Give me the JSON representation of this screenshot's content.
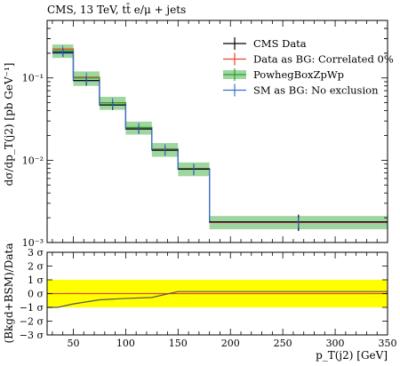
{
  "chart_data": [
    {
      "type": "line",
      "title": "CMS, 13 TeV, tt̄ e/μ + jets",
      "ylabel": "dσ/dp_T(j2) [pb GeV⁻¹]",
      "xlabel": "",
      "yscale": "log",
      "xlim": [
        25,
        350
      ],
      "ylim": [
        0.001,
        0.5
      ],
      "y_ticks": [
        {
          "value": 0.001,
          "label": "10⁻³"
        },
        {
          "value": 0.01,
          "label": "10⁻²"
        },
        {
          "value": 0.1,
          "label": "10⁻¹"
        }
      ],
      "bin_edges": [
        30,
        50,
        75,
        100,
        125,
        150,
        180,
        350
      ],
      "series": [
        {
          "name": "CMS Data",
          "color": "#000000",
          "style": "points",
          "x": [
            40,
            62.5,
            87.5,
            112.5,
            137.5,
            165,
            265
          ],
          "y": [
            0.205,
            0.093,
            0.047,
            0.024,
            0.0132,
            0.0078,
            0.00178
          ],
          "yerr": [
            0.025,
            0.012,
            0.006,
            0.003,
            0.0018,
            0.0012,
            0.0004
          ]
        },
        {
          "name": "Data as BG: Correlated 0%",
          "color": "#e8452c",
          "style": "step",
          "y": [
            0.225,
            0.102,
            0.05,
            0.025,
            0.0137,
            0.0079,
            0.00175
          ]
        },
        {
          "name": "PowhegBoxZpWp",
          "color": "#2ca02c",
          "band_color": "#9fd69f",
          "style": "band",
          "y": [
            0.215,
            0.1,
            0.05,
            0.025,
            0.0136,
            0.0079,
            0.00178
          ],
          "y_low": [
            0.175,
            0.08,
            0.041,
            0.0205,
            0.011,
            0.0064,
            0.00145
          ],
          "y_high": [
            0.255,
            0.12,
            0.059,
            0.0295,
            0.0162,
            0.0094,
            0.0021
          ]
        },
        {
          "name": "SM as BG: No exclusion",
          "color": "#3a6fd8",
          "style": "step",
          "y": [
            0.2,
            0.093,
            0.047,
            0.024,
            0.0133,
            0.0078,
            0.00178
          ]
        }
      ]
    },
    {
      "type": "line",
      "ylabel": "(Bkgd+BSM)/Data",
      "xlabel": "p_T(j2) [GeV]",
      "xlim": [
        25,
        350
      ],
      "ylim": [
        -3,
        3
      ],
      "x_ticks": [
        50,
        100,
        150,
        200,
        250,
        300,
        350
      ],
      "y_ticks": [
        {
          "value": 3,
          "label": "3 σ"
        },
        {
          "value": 2,
          "label": "2 σ"
        },
        {
          "value": 1,
          "label": "1 σ"
        },
        {
          "value": 0,
          "label": "0 σ"
        },
        {
          "value": -1,
          "label": "−1 σ"
        },
        {
          "value": -2,
          "label": "−2 σ"
        },
        {
          "value": -3,
          "label": "−3 σ"
        }
      ],
      "band": {
        "low": -1,
        "high": 1,
        "color": "#ffff00"
      },
      "series": [
        {
          "name": "Data as BG: Correlated 0%",
          "color": "#e8452c",
          "x": [
            25,
            350
          ],
          "y": [
            0,
            0
          ]
        },
        {
          "name": "SM as BG: No exclusion",
          "color": "#555555",
          "x": [
            25,
            35,
            50,
            75,
            100,
            125,
            150,
            180,
            350
          ],
          "y": [
            -1.0,
            -1.0,
            -0.75,
            -0.45,
            -0.35,
            -0.28,
            0.15,
            0.15,
            0.15
          ]
        }
      ]
    }
  ]
}
